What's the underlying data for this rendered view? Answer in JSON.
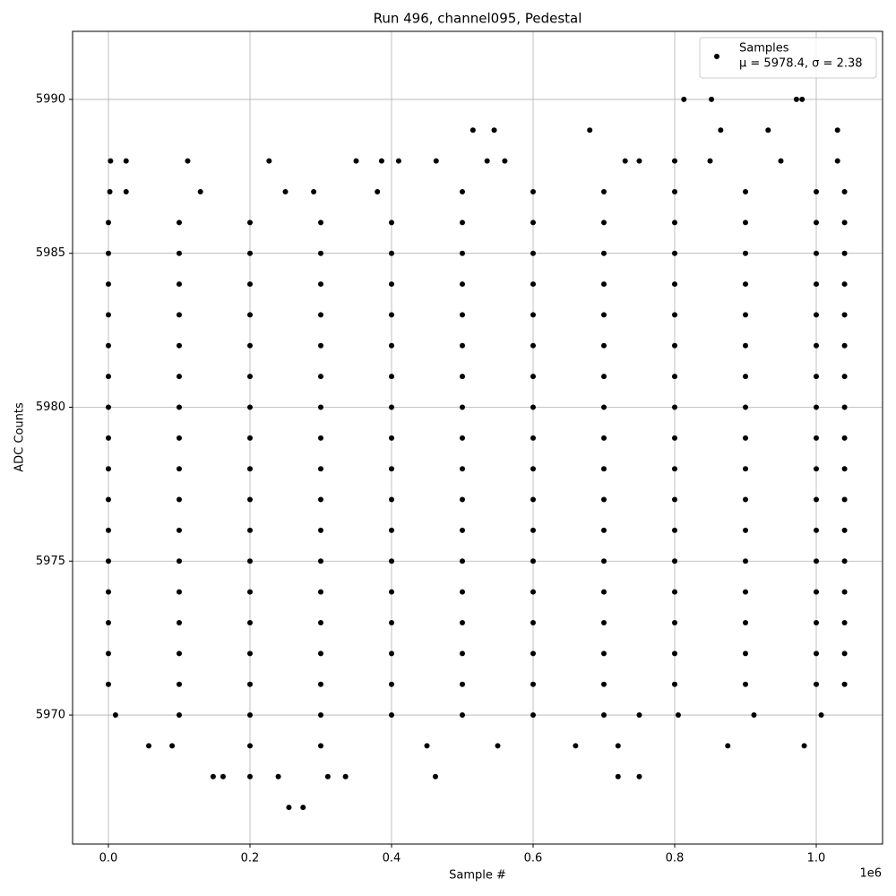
{
  "chart_data": {
    "type": "scatter",
    "title": "Run 496, channel095, Pedestal",
    "x_label": "Sample #",
    "y_label": "ADC Counts",
    "x_offset_label": "1e6",
    "legend": {
      "name": "Samples",
      "stats": "μ = 5978.4, σ = 2.38",
      "position": "upper right"
    },
    "color": "#000000",
    "grid": true,
    "xlim": [
      -50633,
      1093671
    ],
    "ylim": [
      5965.81,
      5992.21
    ],
    "xticks": [
      {
        "value": 0,
        "label": "0.0"
      },
      {
        "value": 200000,
        "label": "0.2"
      },
      {
        "value": 400000,
        "label": "0.4"
      },
      {
        "value": 600000,
        "label": "0.6"
      },
      {
        "value": 800000,
        "label": "0.8"
      },
      {
        "value": 1000000,
        "label": "1.0"
      }
    ],
    "yticks": [
      5970,
      5975,
      5980,
      5985,
      5990
    ],
    "x": [
      0,
      100000,
      200000,
      300000,
      400000,
      500000,
      600000,
      700000,
      800000,
      900000,
      1000000,
      1040000,
      0,
      100000,
      200000,
      300000,
      400000,
      500000,
      600000,
      700000,
      800000,
      900000,
      1000000,
      1040000,
      0,
      100000,
      200000,
      300000,
      400000,
      500000,
      600000,
      700000,
      800000,
      900000,
      1000000,
      1040000,
      0,
      100000,
      200000,
      300000,
      400000,
      500000,
      600000,
      700000,
      800000,
      900000,
      1000000,
      1040000,
      0,
      100000,
      200000,
      300000,
      400000,
      500000,
      600000,
      700000,
      800000,
      900000,
      1000000,
      1040000,
      0,
      100000,
      200000,
      300000,
      400000,
      500000,
      600000,
      700000,
      800000,
      900000,
      1000000,
      1040000,
      0,
      100000,
      200000,
      300000,
      400000,
      500000,
      600000,
      700000,
      800000,
      900000,
      1000000,
      1040000,
      0,
      100000,
      200000,
      300000,
      400000,
      500000,
      600000,
      700000,
      800000,
      900000,
      1000000,
      1040000,
      0,
      100000,
      200000,
      300000,
      400000,
      500000,
      600000,
      700000,
      800000,
      900000,
      1000000,
      1040000,
      0,
      100000,
      200000,
      300000,
      400000,
      500000,
      600000,
      700000,
      800000,
      900000,
      1000000,
      1040000,
      0,
      100000,
      200000,
      300000,
      400000,
      500000,
      600000,
      700000,
      800000,
      900000,
      1000000,
      1040000,
      0,
      100000,
      200000,
      300000,
      400000,
      500000,
      600000,
      700000,
      800000,
      900000,
      1000000,
      1040000,
      0,
      100000,
      200000,
      300000,
      400000,
      500000,
      600000,
      700000,
      800000,
      900000,
      1000000,
      1040000,
      0,
      100000,
      200000,
      300000,
      400000,
      500000,
      600000,
      700000,
      800000,
      900000,
      1000000,
      1040000,
      0,
      100000,
      200000,
      300000,
      400000,
      500000,
      600000,
      700000,
      800000,
      900000,
      1000000,
      1040000,
      0,
      100000,
      200000,
      300000,
      400000,
      500000,
      600000,
      700000,
      800000,
      900000,
      1000000,
      1040000,
      813000,
      852000,
      972000,
      980000,
      515000,
      545000,
      680000,
      865000,
      932000,
      1030000,
      3000,
      25000,
      112000,
      227000,
      350000,
      386000,
      410000,
      463000,
      535000,
      560000,
      730000,
      750000,
      800000,
      850000,
      950000,
      1030000,
      2000,
      25000,
      130000,
      250000,
      290000,
      380000,
      500000,
      600000,
      700000,
      800000,
      900000,
      1000000,
      1040000,
      10000,
      100000,
      200000,
      300000,
      400000,
      500000,
      600000,
      700000,
      750000,
      805000,
      912000,
      1007000,
      57000,
      90000,
      200000,
      300000,
      450000,
      550000,
      660000,
      720000,
      875000,
      983000,
      148000,
      162000,
      200000,
      240000,
      310000,
      335000,
      462000,
      720000,
      750000,
      255000,
      275000
    ],
    "y": [
      5986,
      5986,
      5986,
      5986,
      5986,
      5986,
      5986,
      5986,
      5986,
      5986,
      5986,
      5986,
      5985,
      5985,
      5985,
      5985,
      5985,
      5985,
      5985,
      5985,
      5985,
      5985,
      5985,
      5985,
      5984,
      5984,
      5984,
      5984,
      5984,
      5984,
      5984,
      5984,
      5984,
      5984,
      5984,
      5984,
      5983,
      5983,
      5983,
      5983,
      5983,
      5983,
      5983,
      5983,
      5983,
      5983,
      5983,
      5983,
      5982,
      5982,
      5982,
      5982,
      5982,
      5982,
      5982,
      5982,
      5982,
      5982,
      5982,
      5982,
      5981,
      5981,
      5981,
      5981,
      5981,
      5981,
      5981,
      5981,
      5981,
      5981,
      5981,
      5981,
      5980,
      5980,
      5980,
      5980,
      5980,
      5980,
      5980,
      5980,
      5980,
      5980,
      5980,
      5980,
      5979,
      5979,
      5979,
      5979,
      5979,
      5979,
      5979,
      5979,
      5979,
      5979,
      5979,
      5979,
      5978,
      5978,
      5978,
      5978,
      5978,
      5978,
      5978,
      5978,
      5978,
      5978,
      5978,
      5978,
      5977,
      5977,
      5977,
      5977,
      5977,
      5977,
      5977,
      5977,
      5977,
      5977,
      5977,
      5977,
      5976,
      5976,
      5976,
      5976,
      5976,
      5976,
      5976,
      5976,
      5976,
      5976,
      5976,
      5976,
      5975,
      5975,
      5975,
      5975,
      5975,
      5975,
      5975,
      5975,
      5975,
      5975,
      5975,
      5975,
      5974,
      5974,
      5974,
      5974,
      5974,
      5974,
      5974,
      5974,
      5974,
      5974,
      5974,
      5974,
      5973,
      5973,
      5973,
      5973,
      5973,
      5973,
      5973,
      5973,
      5973,
      5973,
      5973,
      5973,
      5972,
      5972,
      5972,
      5972,
      5972,
      5972,
      5972,
      5972,
      5972,
      5972,
      5972,
      5972,
      5971,
      5971,
      5971,
      5971,
      5971,
      5971,
      5971,
      5971,
      5971,
      5971,
      5971,
      5971,
      5990,
      5990,
      5990,
      5990,
      5989,
      5989,
      5989,
      5989,
      5989,
      5989,
      5988,
      5988,
      5988,
      5988,
      5988,
      5988,
      5988,
      5988,
      5988,
      5988,
      5988,
      5988,
      5988,
      5988,
      5988,
      5988,
      5987,
      5987,
      5987,
      5987,
      5987,
      5987,
      5987,
      5987,
      5987,
      5987,
      5987,
      5987,
      5987,
      5970,
      5970,
      5970,
      5970,
      5970,
      5970,
      5970,
      5970,
      5970,
      5970,
      5970,
      5970,
      5969,
      5969,
      5969,
      5969,
      5969,
      5969,
      5969,
      5969,
      5969,
      5969,
      5968,
      5968,
      5968,
      5968,
      5968,
      5968,
      5968,
      5968,
      5968,
      5967,
      5967
    ]
  }
}
